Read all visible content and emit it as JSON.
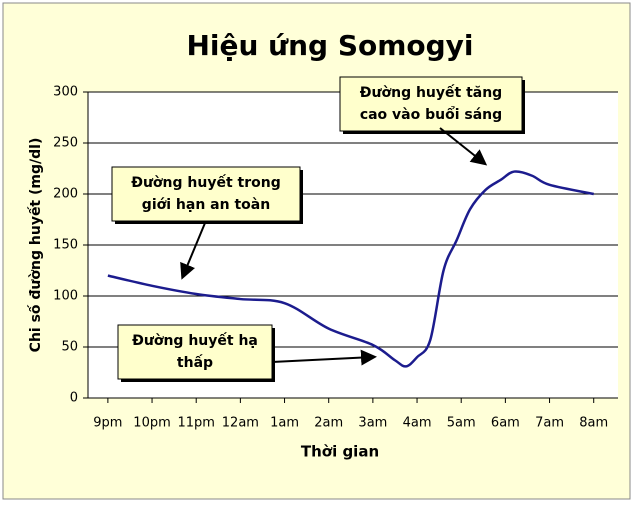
{
  "chart_data": {
    "type": "line",
    "title": "Hiệu ứng Somogyi",
    "x_label": "Thời gian",
    "y_label": "Chi số đường huyết  (mg/dl)",
    "x": [
      0,
      1,
      2,
      3,
      4,
      5,
      6,
      6.5,
      6.75,
      7,
      7.3,
      7.6,
      7.9,
      8.2,
      8.55,
      8.9,
      9.2,
      9.6,
      10,
      11
    ],
    "series": [
      {
        "name": "Đường huyết",
        "color": "#1c1c8e",
        "values": [
          120,
          110,
          102,
          97,
          93,
          68,
          52,
          37,
          31,
          40,
          57,
          125,
          155,
          185,
          204,
          214,
          222,
          218,
          209,
          200
        ]
      }
    ],
    "xlim": [
      -0.45,
      11.55
    ],
    "xticks": [
      {
        "value": 0,
        "label": "9pm"
      },
      {
        "value": 1,
        "label": "10pm"
      },
      {
        "value": 2,
        "label": "11pm"
      },
      {
        "value": 3,
        "label": "12am"
      },
      {
        "value": 4,
        "label": "1am"
      },
      {
        "value": 5,
        "label": "2am"
      },
      {
        "value": 6,
        "label": "3am"
      },
      {
        "value": 7,
        "label": "4am"
      },
      {
        "value": 8,
        "label": "5am"
      },
      {
        "value": 9,
        "label": "6am"
      },
      {
        "value": 10,
        "label": "7am"
      },
      {
        "value": 11,
        "label": "8am"
      }
    ],
    "ylim": [
      0,
      300
    ],
    "yticks": [
      0,
      50,
      100,
      150,
      200,
      250,
      300
    ],
    "grid": true,
    "annotations": [
      {
        "lines": [
          "Đường huyết tăng",
          "cao vào buổi sáng"
        ]
      },
      {
        "lines": [
          "Đường huyết trong",
          "giới hạn an toàn"
        ]
      },
      {
        "lines": [
          "Đường huyết hạ",
          "thấp"
        ]
      }
    ]
  }
}
